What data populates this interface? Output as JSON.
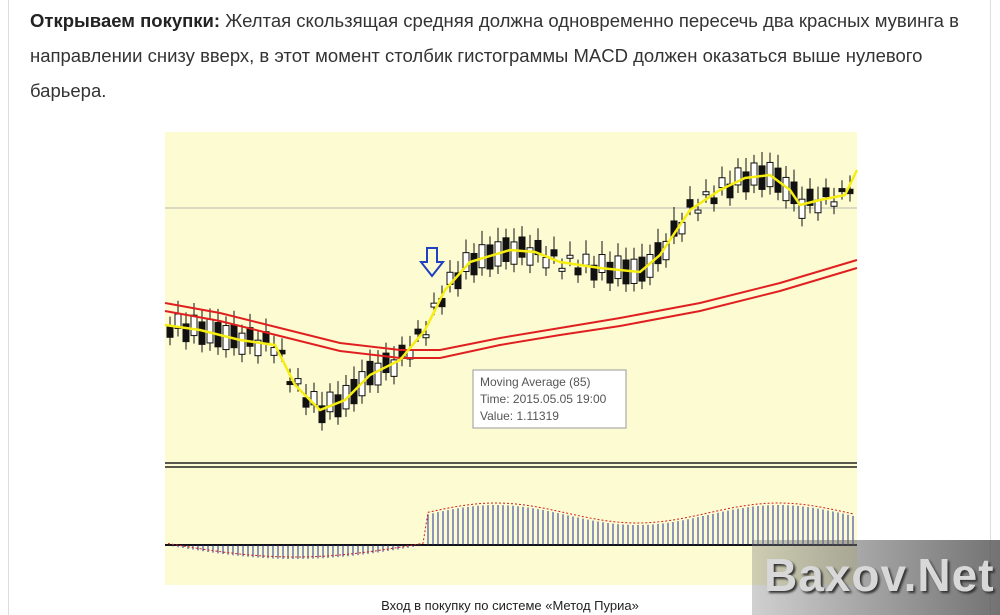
{
  "article": {
    "paragraph": {
      "lead": "Открываем покупки:",
      "text": "Желтая скользящая средняя должна одновременно пересечь два красных мувинга в направлении снизу вверх, в этот момент столбик гистограммы MACD должен оказаться выше нулевого барьера."
    },
    "figure": {
      "tooltip": [
        "Moving Average (85)",
        "Time: 2015.05.05 19:00",
        "Value: 1.11319"
      ],
      "caption": "Вход в покупку по системе «Метод Пуриа»"
    }
  },
  "watermark": "Baxov.Net"
}
